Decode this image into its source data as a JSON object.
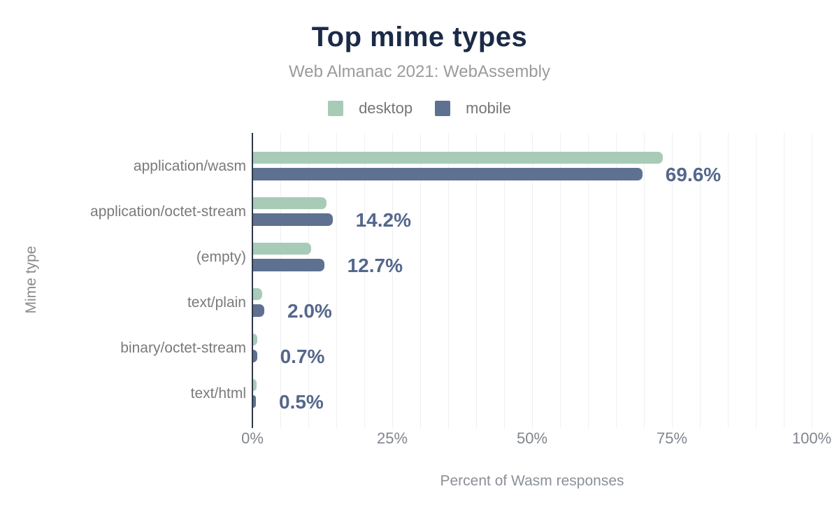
{
  "chart_data": {
    "type": "bar",
    "orientation": "horizontal",
    "title": "Top mime types",
    "subtitle": "Web Almanac 2021: WebAssembly",
    "xlabel": "Percent of Wasm responses",
    "ylabel": "Mime type",
    "categories": [
      "application/wasm",
      "application/octet-stream",
      "(empty)",
      "text/plain",
      "binary/octet-stream",
      "text/html"
    ],
    "series": [
      {
        "name": "desktop",
        "color": "#a8cbb8",
        "values": [
          73.2,
          13.1,
          10.4,
          1.6,
          0.8,
          0.6
        ]
      },
      {
        "name": "mobile",
        "color": "#5e7190",
        "values": [
          69.6,
          14.2,
          12.7,
          2.0,
          0.7,
          0.5
        ]
      }
    ],
    "data_labels": [
      "69.6%",
      "14.2%",
      "12.7%",
      "2.0%",
      "0.7%",
      "0.5%"
    ],
    "xlim": [
      0,
      100
    ],
    "x_ticks": [
      {
        "value": 0,
        "label": "0%"
      },
      {
        "value": 25,
        "label": "25%"
      },
      {
        "value": 50,
        "label": "50%"
      },
      {
        "value": 75,
        "label": "75%"
      },
      {
        "value": 100,
        "label": "100%"
      }
    ],
    "gridline_step_pct": 5,
    "grid": true,
    "legend_position": "top",
    "colors": {
      "title": "#1b2a47",
      "subtitle": "#9b9b9b",
      "value_label": "#54678c",
      "axis_line": "#2e3748",
      "gridline": "#eef1ef",
      "background": "#ffffff"
    }
  }
}
